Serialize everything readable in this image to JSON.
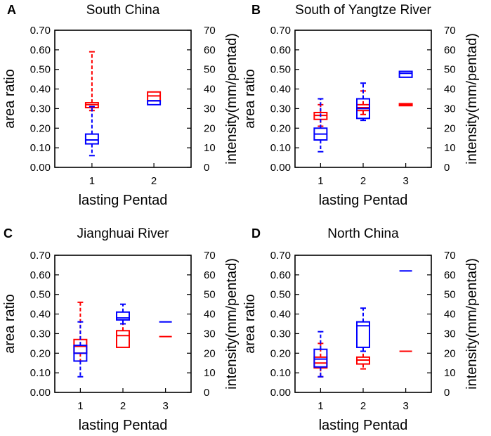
{
  "colors": {
    "area": "#ff0000",
    "intensity": "#0000ff",
    "axis": "#000000"
  },
  "chart_data": [
    {
      "type": "box",
      "panel_label": "A",
      "title": "South China",
      "xlabel": "lasting Pentad",
      "ylabel_left": "area ratio",
      "ylabel_right": "intensity(mm/pentad)",
      "categories": [
        "1",
        "2"
      ],
      "x_range": [
        0.4,
        2.6
      ],
      "ylim_left": [
        0,
        0.7
      ],
      "ylim_right": [
        0,
        70
      ],
      "left_ticks": [
        "0.00",
        "0.10",
        "0.20",
        "0.30",
        "0.40",
        "0.50",
        "0.60",
        "0.70"
      ],
      "right_ticks": [
        "0",
        "10",
        "20",
        "30",
        "40",
        "50",
        "60",
        "70"
      ],
      "series": [
        {
          "name": "area ratio",
          "axis": "left",
          "color": "#ff0000",
          "boxes": [
            {
              "x": 1,
              "min": 0.29,
              "q1": 0.305,
              "median": 0.32,
              "q3": 0.33,
              "max": 0.59
            },
            {
              "x": 2,
              "min": 0.34,
              "q1": 0.34,
              "median": 0.365,
              "q3": 0.385,
              "max": 0.385
            }
          ]
        },
        {
          "name": "intensity",
          "axis": "right",
          "color": "#0000ff",
          "boxes": [
            {
              "x": 1,
              "min": 6,
              "q1": 12,
              "median": 14,
              "q3": 17,
              "max": 31
            },
            {
              "x": 2,
              "min": 32,
              "q1": 32,
              "median": 34,
              "q3": 34,
              "max": 34
            }
          ]
        }
      ]
    },
    {
      "type": "box",
      "panel_label": "B",
      "title": "South of Yangtze River",
      "xlabel": "lasting Pentad",
      "ylabel_left": "area ratio",
      "ylabel_right": "intensity(mm/pentad)",
      "categories": [
        "1",
        "2",
        "3"
      ],
      "x_range": [
        0.4,
        3.6
      ],
      "ylim_left": [
        0,
        0.7
      ],
      "ylim_right": [
        0,
        70
      ],
      "left_ticks": [
        "0.00",
        "0.10",
        "0.20",
        "0.30",
        "0.40",
        "0.50",
        "0.60",
        "0.70"
      ],
      "right_ticks": [
        "0",
        "10",
        "20",
        "30",
        "40",
        "50",
        "60",
        "70"
      ],
      "series": [
        {
          "name": "area ratio",
          "axis": "left",
          "color": "#ff0000",
          "boxes": [
            {
              "x": 1,
              "min": 0.21,
              "q1": 0.245,
              "median": 0.265,
              "q3": 0.28,
              "max": 0.32
            },
            {
              "x": 2,
              "min": 0.27,
              "q1": 0.29,
              "median": 0.305,
              "q3": 0.32,
              "max": 0.39
            },
            {
              "x": 3,
              "min": 0.315,
              "q1": 0.315,
              "median": 0.32,
              "q3": 0.325,
              "max": 0.325
            }
          ]
        },
        {
          "name": "intensity",
          "axis": "right",
          "color": "#0000ff",
          "boxes": [
            {
              "x": 1,
              "min": 8,
              "q1": 14,
              "median": 17,
              "q3": 20,
              "max": 35
            },
            {
              "x": 2,
              "min": 24,
              "q1": 25,
              "median": 30,
              "q3": 35,
              "max": 43
            },
            {
              "x": 3,
              "min": 46,
              "q1": 46,
              "median": 48,
              "q3": 49,
              "max": 49
            }
          ]
        }
      ]
    },
    {
      "type": "box",
      "panel_label": "C",
      "title": "Jianghuai River",
      "xlabel": "lasting Pentad",
      "ylabel_left": "area ratio",
      "ylabel_right": "intensity(mm/pentad)",
      "categories": [
        "1",
        "2",
        "3"
      ],
      "x_range": [
        0.4,
        3.6
      ],
      "ylim_left": [
        0,
        0.7
      ],
      "ylim_right": [
        0,
        70
      ],
      "left_ticks": [
        "0.00",
        "0.10",
        "0.20",
        "0.30",
        "0.40",
        "0.50",
        "0.60",
        "0.70"
      ],
      "right_ticks": [
        "0",
        "10",
        "20",
        "30",
        "40",
        "50",
        "60",
        "70"
      ],
      "series": [
        {
          "name": "area ratio",
          "axis": "left",
          "color": "#ff0000",
          "boxes": [
            {
              "x": 1,
              "min": 0.16,
              "q1": 0.2,
              "median": 0.235,
              "q3": 0.27,
              "max": 0.46
            },
            {
              "x": 2,
              "min": 0.23,
              "q1": 0.23,
              "median": 0.29,
              "q3": 0.315,
              "max": 0.35
            },
            {
              "x": 3,
              "min": 0.285,
              "q1": 0.285,
              "median": 0.285,
              "q3": 0.285,
              "max": 0.285
            }
          ]
        },
        {
          "name": "intensity",
          "axis": "right",
          "color": "#0000ff",
          "boxes": [
            {
              "x": 1,
              "min": 8,
              "q1": 16,
              "median": 20,
              "q3": 24,
              "max": 36
            },
            {
              "x": 2,
              "min": 35,
              "q1": 37,
              "median": 38,
              "q3": 41,
              "max": 45
            },
            {
              "x": 3,
              "min": 36,
              "q1": 36,
              "median": 36,
              "q3": 36,
              "max": 36
            }
          ]
        }
      ]
    },
    {
      "type": "box",
      "panel_label": "D",
      "title": "North China",
      "xlabel": "lasting Pentad",
      "ylabel_left": "area ratio",
      "ylabel_right": "intensity(mm/pentad)",
      "categories": [
        "1",
        "2",
        "3"
      ],
      "x_range": [
        0.4,
        3.6
      ],
      "ylim_left": [
        0,
        0.7
      ],
      "ylim_right": [
        0,
        70
      ],
      "left_ticks": [
        "0.00",
        "0.10",
        "0.20",
        "0.30",
        "0.40",
        "0.50",
        "0.60",
        "0.70"
      ],
      "right_ticks": [
        "0",
        "10",
        "20",
        "30",
        "40",
        "50",
        "60",
        "70"
      ],
      "series": [
        {
          "name": "area ratio",
          "axis": "left",
          "color": "#ff0000",
          "boxes": [
            {
              "x": 1,
              "min": 0.08,
              "q1": 0.125,
              "median": 0.15,
              "q3": 0.18,
              "max": 0.25
            },
            {
              "x": 2,
              "min": 0.12,
              "q1": 0.145,
              "median": 0.165,
              "q3": 0.18,
              "max": 0.21
            },
            {
              "x": 3,
              "min": 0.21,
              "q1": 0.21,
              "median": 0.21,
              "q3": 0.21,
              "max": 0.21
            }
          ]
        },
        {
          "name": "intensity",
          "axis": "right",
          "color": "#0000ff",
          "boxes": [
            {
              "x": 1,
              "min": 8,
              "q1": 13,
              "median": 17,
              "q3": 22,
              "max": 31
            },
            {
              "x": 2,
              "min": 21,
              "q1": 23,
              "median": 34,
              "q3": 36,
              "max": 43
            },
            {
              "x": 3,
              "min": 62,
              "q1": 62,
              "median": 62,
              "q3": 62,
              "max": 62
            }
          ]
        }
      ]
    }
  ]
}
